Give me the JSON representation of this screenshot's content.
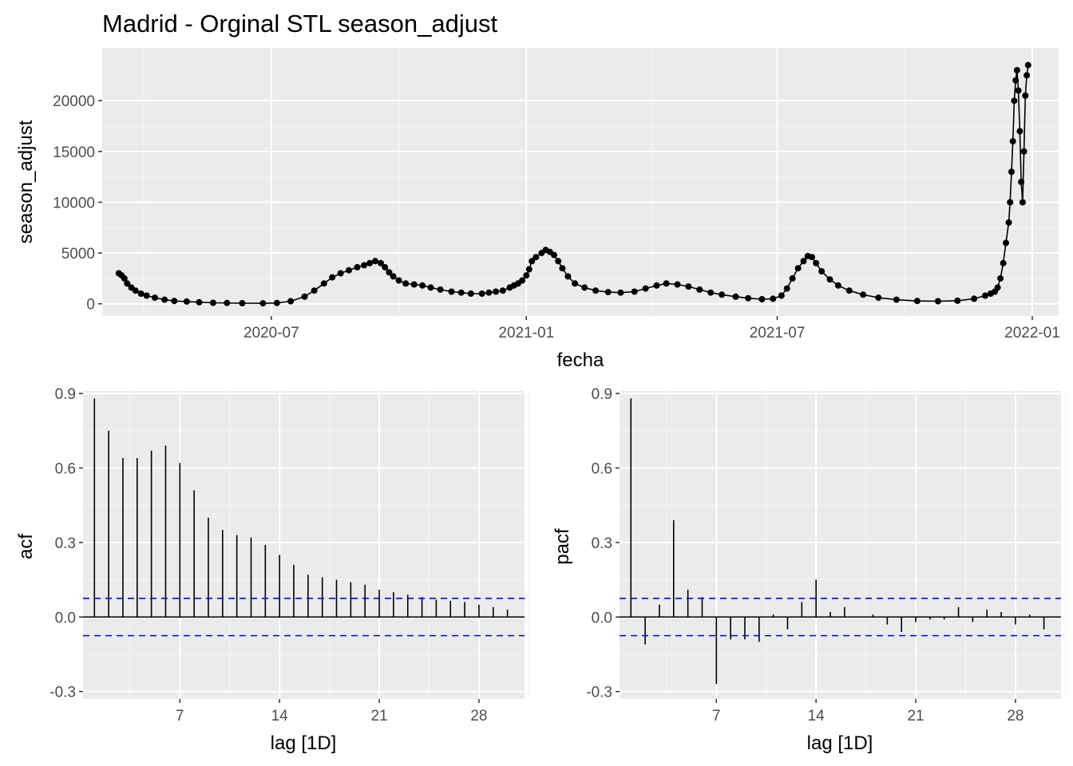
{
  "chart_data": [
    {
      "type": "line",
      "title": "Madrid - Orginal STL season_adjust",
      "xlabel": "fecha",
      "ylabel": "season_adjust",
      "x_type": "date",
      "xlim": [
        "2020-03-01",
        "2022-01-20"
      ],
      "ylim": [
        -1200,
        25200
      ],
      "x_ticks": [
        "2020-07-01",
        "2021-01-01",
        "2021-07-01",
        "2022-01-01"
      ],
      "x_tick_labels": [
        "2020-07",
        "2021-01",
        "2021-07",
        "2022-01"
      ],
      "y_ticks": [
        0,
        5000,
        10000,
        15000,
        20000
      ],
      "y_tick_labels": [
        "0",
        "5000",
        "10000",
        "15000",
        "20000"
      ],
      "grid": true,
      "markers": true,
      "series": [
        {
          "x": [
            "2020-03-13",
            "2020-03-15",
            "2020-03-17",
            "2020-03-19",
            "2020-03-22",
            "2020-03-25",
            "2020-03-29",
            "2020-04-02",
            "2020-04-08",
            "2020-04-15",
            "2020-04-22",
            "2020-05-01",
            "2020-05-10",
            "2020-05-20",
            "2020-05-30",
            "2020-06-10",
            "2020-06-25",
            "2020-07-05",
            "2020-07-15",
            "2020-07-25",
            "2020-08-01",
            "2020-08-08",
            "2020-08-14",
            "2020-08-20",
            "2020-08-26",
            "2020-09-01",
            "2020-09-06",
            "2020-09-10",
            "2020-09-14",
            "2020-09-18",
            "2020-09-21",
            "2020-09-24",
            "2020-09-27",
            "2020-10-01",
            "2020-10-06",
            "2020-10-12",
            "2020-10-18",
            "2020-10-24",
            "2020-10-31",
            "2020-11-08",
            "2020-11-15",
            "2020-11-22",
            "2020-11-30",
            "2020-12-05",
            "2020-12-10",
            "2020-12-15",
            "2020-12-20",
            "2020-12-23",
            "2020-12-26",
            "2020-12-29",
            "2021-01-01",
            "2021-01-03",
            "2021-01-05",
            "2021-01-08",
            "2021-01-12",
            "2021-01-15",
            "2021-01-18",
            "2021-01-21",
            "2021-01-24",
            "2021-01-27",
            "2021-01-31",
            "2021-02-05",
            "2021-02-12",
            "2021-02-20",
            "2021-03-01",
            "2021-03-10",
            "2021-03-20",
            "2021-03-28",
            "2021-04-05",
            "2021-04-12",
            "2021-04-20",
            "2021-04-28",
            "2021-05-06",
            "2021-05-14",
            "2021-05-22",
            "2021-06-01",
            "2021-06-10",
            "2021-06-20",
            "2021-06-28",
            "2021-07-04",
            "2021-07-08",
            "2021-07-12",
            "2021-07-16",
            "2021-07-20",
            "2021-07-23",
            "2021-07-26",
            "2021-07-29",
            "2021-08-02",
            "2021-08-08",
            "2021-08-14",
            "2021-08-22",
            "2021-09-01",
            "2021-09-12",
            "2021-09-25",
            "2021-10-10",
            "2021-10-25",
            "2021-11-08",
            "2021-11-20",
            "2021-11-28",
            "2021-12-02",
            "2021-12-05",
            "2021-12-07",
            "2021-12-09",
            "2021-12-11",
            "2021-12-13",
            "2021-12-15",
            "2021-12-16",
            "2021-12-17",
            "2021-12-18",
            "2021-12-19",
            "2021-12-20",
            "2021-12-21",
            "2021-12-22",
            "2021-12-23",
            "2021-12-24",
            "2021-12-25",
            "2021-12-26",
            "2021-12-27",
            "2021-12-28",
            "2021-12-29"
          ],
          "values": [
            3000,
            2800,
            2500,
            2000,
            1600,
            1300,
            1000,
            800,
            600,
            400,
            280,
            220,
            150,
            100,
            80,
            60,
            50,
            80,
            250,
            700,
            1300,
            2000,
            2600,
            3000,
            3300,
            3600,
            3800,
            4000,
            4200,
            4000,
            3600,
            3100,
            2700,
            2300,
            2000,
            1900,
            1800,
            1600,
            1400,
            1200,
            1100,
            1000,
            1000,
            1100,
            1200,
            1300,
            1600,
            1800,
            2000,
            2300,
            2800,
            3400,
            4200,
            4600,
            5000,
            5300,
            5100,
            4800,
            4200,
            3500,
            2700,
            2000,
            1600,
            1300,
            1150,
            1100,
            1200,
            1500,
            1800,
            2000,
            1900,
            1700,
            1400,
            1100,
            900,
            700,
            550,
            450,
            500,
            800,
            1500,
            2500,
            3500,
            4200,
            4700,
            4600,
            4000,
            3200,
            2400,
            1800,
            1300,
            900,
            600,
            400,
            280,
            250,
            300,
            500,
            800,
            1000,
            1200,
            1600,
            2500,
            4000,
            6000,
            8000,
            10000,
            13000,
            16000,
            20000,
            22000,
            23000,
            21000,
            17000,
            12000,
            10000,
            15000,
            20500,
            22500,
            23500
          ]
        }
      ]
    },
    {
      "type": "bar",
      "xlabel": "lag [1D]",
      "ylabel": "acf",
      "xlim": [
        0.2,
        31.2
      ],
      "ylim": [
        -0.33,
        0.91
      ],
      "x_ticks": [
        7,
        14,
        21,
        28
      ],
      "y_ticks": [
        -0.3,
        0.0,
        0.3,
        0.6,
        0.9
      ],
      "y_tick_labels": [
        "-0.3",
        "0.0",
        "0.3",
        "0.6",
        "0.9"
      ],
      "grid": true,
      "ci": 0.075,
      "x": [
        1,
        2,
        3,
        4,
        5,
        6,
        7,
        8,
        9,
        10,
        11,
        12,
        13,
        14,
        15,
        16,
        17,
        18,
        19,
        20,
        21,
        22,
        23,
        24,
        25,
        26,
        27,
        28,
        29,
        30
      ],
      "values": [
        0.88,
        0.75,
        0.64,
        0.64,
        0.67,
        0.69,
        0.62,
        0.51,
        0.4,
        0.35,
        0.33,
        0.32,
        0.29,
        0.25,
        0.21,
        0.17,
        0.16,
        0.15,
        0.14,
        0.13,
        0.11,
        0.1,
        0.09,
        0.08,
        0.07,
        0.065,
        0.06,
        0.05,
        0.04,
        0.03
      ]
    },
    {
      "type": "bar",
      "xlabel": "lag [1D]",
      "ylabel": "pacf",
      "xlim": [
        0.2,
        31.2
      ],
      "ylim": [
        -0.33,
        0.91
      ],
      "x_ticks": [
        7,
        14,
        21,
        28
      ],
      "y_ticks": [
        -0.3,
        0.0,
        0.3,
        0.6,
        0.9
      ],
      "y_tick_labels": [
        "-0.3",
        "0.0",
        "0.3",
        "0.6",
        "0.9"
      ],
      "grid": true,
      "ci": 0.075,
      "x": [
        1,
        2,
        3,
        4,
        5,
        6,
        7,
        8,
        9,
        10,
        11,
        12,
        13,
        14,
        15,
        16,
        17,
        18,
        19,
        20,
        21,
        22,
        23,
        24,
        25,
        26,
        27,
        28,
        29,
        30
      ],
      "values": [
        0.88,
        -0.11,
        0.05,
        0.39,
        0.11,
        0.08,
        -0.27,
        -0.09,
        -0.09,
        -0.1,
        0.01,
        -0.05,
        0.06,
        0.15,
        0.02,
        0.04,
        0.0,
        0.01,
        -0.03,
        -0.06,
        -0.02,
        -0.01,
        -0.01,
        0.04,
        -0.02,
        0.03,
        0.02,
        -0.03,
        0.01,
        -0.05
      ]
    }
  ]
}
